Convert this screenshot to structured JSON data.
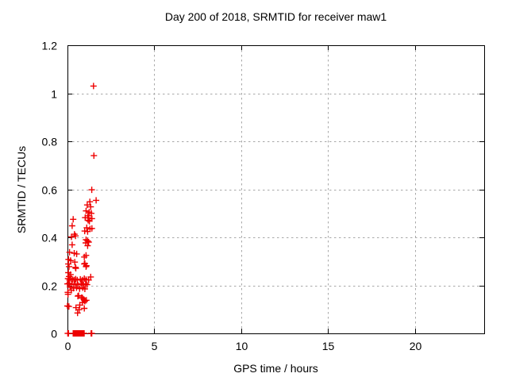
{
  "chart_data": {
    "type": "scatter",
    "title": "Day 200 of 2018, SRMTID for receiver maw1",
    "xlabel": "GPS time / hours",
    "ylabel": "SRMTID / TECUs",
    "xlim": [
      0,
      24
    ],
    "ylim": [
      0,
      1.2
    ],
    "xticks": [
      0,
      5,
      10,
      15,
      20
    ],
    "xtick_labels": [
      "0",
      "5",
      "10",
      "15",
      "20"
    ],
    "yticks": [
      0,
      0.2,
      0.4,
      0.6,
      0.8,
      1.0,
      1.2
    ],
    "ytick_labels": [
      "0",
      "0.2",
      "0.4",
      "0.6",
      "0.8",
      "1",
      "1.2"
    ],
    "grid": true,
    "legend_position": "none",
    "marker": "plus",
    "colors": {
      "marker": "#ee0000",
      "grid": "#a8a8a8",
      "frame": "#000000",
      "text": "#000000",
      "background": "#ffffff"
    },
    "series": [
      {
        "name": "SRMTID",
        "points": [
          [
            1.5,
            1.03
          ],
          [
            1.52,
            0.74
          ],
          [
            1.4,
            0.598
          ],
          [
            1.29,
            0.548
          ],
          [
            1.65,
            0.554
          ],
          [
            1.14,
            0.535
          ],
          [
            1.34,
            0.527
          ],
          [
            1.07,
            0.51
          ],
          [
            1.25,
            0.505
          ],
          [
            1.37,
            0.5
          ],
          [
            1.17,
            0.49
          ],
          [
            1.02,
            0.482
          ],
          [
            1.22,
            0.481
          ],
          [
            1.41,
            0.478
          ],
          [
            0.33,
            0.475
          ],
          [
            1.19,
            0.471
          ],
          [
            1.26,
            0.467
          ],
          [
            0.27,
            0.448
          ],
          [
            1.11,
            0.44
          ],
          [
            1.41,
            0.437
          ],
          [
            1.3,
            0.435
          ],
          [
            0.99,
            0.426
          ],
          [
            1.16,
            0.424
          ],
          [
            0.4,
            0.413
          ],
          [
            0.46,
            0.406
          ],
          [
            0.23,
            0.402
          ],
          [
            1.07,
            0.39
          ],
          [
            1.16,
            0.385
          ],
          [
            1.22,
            0.38
          ],
          [
            1.05,
            0.377
          ],
          [
            0.27,
            0.369
          ],
          [
            1.16,
            0.365
          ],
          [
            0.12,
            0.338
          ],
          [
            0.39,
            0.334
          ],
          [
            0.53,
            0.331
          ],
          [
            1.07,
            0.325
          ],
          [
            0.97,
            0.318
          ],
          [
            0.06,
            0.308
          ],
          [
            0.18,
            0.303
          ],
          [
            0.42,
            0.297
          ],
          [
            1.0,
            0.291
          ],
          [
            0.05,
            0.289
          ],
          [
            0.97,
            0.289
          ],
          [
            1.09,
            0.282
          ],
          [
            1.07,
            0.278
          ],
          [
            0.09,
            0.278
          ],
          [
            0.46,
            0.275
          ],
          [
            0.48,
            0.271
          ],
          [
            0.05,
            0.253
          ],
          [
            0.18,
            0.245
          ],
          [
            0.09,
            0.237
          ],
          [
            1.34,
            0.235
          ],
          [
            0.03,
            0.228
          ],
          [
            0.21,
            0.228
          ],
          [
            0.97,
            0.228
          ],
          [
            0.47,
            0.226
          ],
          [
            0.74,
            0.225
          ],
          [
            0.3,
            0.224
          ],
          [
            1.07,
            0.224
          ],
          [
            0.12,
            0.222
          ],
          [
            0.39,
            0.222
          ],
          [
            0.56,
            0.222
          ],
          [
            0.86,
            0.222
          ],
          [
            1.22,
            0.222
          ],
          [
            0.08,
            0.208
          ],
          [
            0.79,
            0.207
          ],
          [
            0.0,
            0.206
          ],
          [
            0.44,
            0.206
          ],
          [
            1.04,
            0.206
          ],
          [
            0.25,
            0.204
          ],
          [
            0.88,
            0.204
          ],
          [
            0.6,
            0.203
          ],
          [
            1.13,
            0.203
          ],
          [
            0.92,
            0.202
          ],
          [
            0.15,
            0.192
          ],
          [
            0.52,
            0.19
          ],
          [
            0.88,
            0.19
          ],
          [
            0.35,
            0.188
          ],
          [
            0.7,
            0.186
          ],
          [
            1.0,
            0.185
          ],
          [
            0.23,
            0.18
          ],
          [
            0.02,
            0.171
          ],
          [
            0.03,
            0.163
          ],
          [
            0.64,
            0.157
          ],
          [
            0.6,
            0.155
          ],
          [
            0.82,
            0.149
          ],
          [
            0.87,
            0.147
          ],
          [
            0.94,
            0.141
          ],
          [
            1.09,
            0.138
          ],
          [
            0.99,
            0.136
          ],
          [
            1.0,
            0.134
          ],
          [
            0.87,
            0.128
          ],
          [
            0.71,
            0.118
          ],
          [
            0.0,
            0.114
          ],
          [
            0.08,
            0.112
          ],
          [
            0.49,
            0.107
          ],
          [
            0.97,
            0.104
          ],
          [
            0.67,
            0.099
          ],
          [
            0.58,
            0.085
          ],
          [
            0.02,
            0.0
          ],
          [
            0.06,
            0.0
          ],
          [
            0.33,
            0.0
          ],
          [
            0.36,
            0.0
          ],
          [
            0.39,
            0.0
          ],
          [
            0.42,
            0.0
          ],
          [
            0.45,
            0.0
          ],
          [
            0.48,
            0.0
          ],
          [
            0.51,
            0.0
          ],
          [
            0.54,
            0.0
          ],
          [
            0.57,
            0.0
          ],
          [
            0.6,
            0.0
          ],
          [
            0.63,
            0.0
          ],
          [
            0.66,
            0.0
          ],
          [
            0.69,
            0.0
          ],
          [
            0.72,
            0.0
          ],
          [
            0.75,
            0.0
          ],
          [
            0.78,
            0.0
          ],
          [
            0.81,
            0.0
          ],
          [
            0.84,
            0.0
          ],
          [
            0.87,
            0.0
          ],
          [
            0.9,
            0.0
          ],
          [
            0.93,
            0.0
          ],
          [
            0.96,
            0.0
          ],
          [
            1.36,
            0.0
          ],
          [
            1.4,
            0.0
          ]
        ]
      }
    ]
  }
}
